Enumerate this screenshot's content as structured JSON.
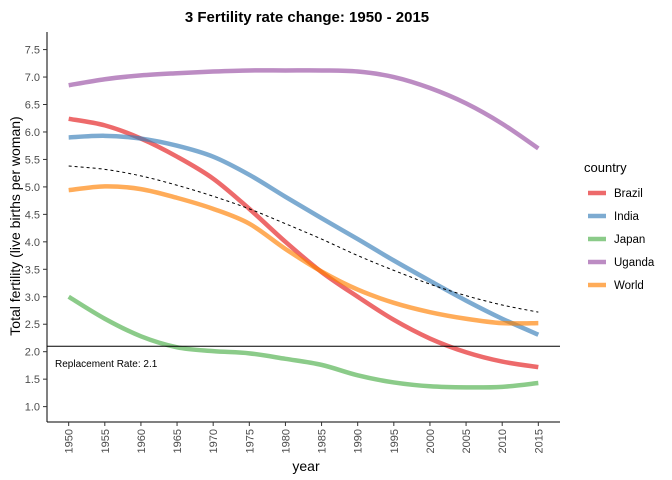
{
  "chart_data": {
    "type": "line",
    "title": "3 Fertility rate change: 1950 - 2015",
    "xlabel": "year",
    "ylabel": "Total fertility (live births per woman)",
    "xlim": [
      1947,
      2018
    ],
    "ylim": [
      0.72,
      7.82
    ],
    "x_ticks": [
      1950,
      1955,
      1960,
      1965,
      1970,
      1975,
      1980,
      1985,
      1990,
      1995,
      2000,
      2005,
      2010,
      2015
    ],
    "y_ticks": [
      1.0,
      1.5,
      2.0,
      2.5,
      3.0,
      3.5,
      4.0,
      4.5,
      5.0,
      5.5,
      6.0,
      6.5,
      7.0,
      7.5
    ],
    "y_tick_labels": [
      "1.0",
      "1.5",
      "2.0",
      "2.5",
      "3.0",
      "3.5",
      "4.0",
      "4.5",
      "5.0",
      "5.5",
      "6.0",
      "6.5",
      "7.0",
      "7.5"
    ],
    "x": [
      1950,
      1955,
      1960,
      1965,
      1970,
      1975,
      1980,
      1985,
      1990,
      1995,
      2000,
      2005,
      2010,
      2015
    ],
    "legend_title": "country",
    "legend_position": "right",
    "grid": false,
    "series": [
      {
        "name": "Brazil",
        "color": "#E41A1C",
        "values": [
          6.24,
          6.12,
          5.88,
          5.55,
          5.15,
          4.6,
          4.0,
          3.45,
          3.0,
          2.58,
          2.24,
          1.99,
          1.82,
          1.72
        ]
      },
      {
        "name": "India",
        "color": "#377EB8",
        "values": [
          5.9,
          5.93,
          5.88,
          5.75,
          5.55,
          5.22,
          4.82,
          4.43,
          4.05,
          3.66,
          3.29,
          2.93,
          2.6,
          2.31
        ]
      },
      {
        "name": "Japan",
        "color": "#4DAF4A",
        "values": [
          3.0,
          2.6,
          2.28,
          2.08,
          2.01,
          1.97,
          1.87,
          1.76,
          1.57,
          1.44,
          1.37,
          1.35,
          1.36,
          1.43
        ]
      },
      {
        "name": "Uganda",
        "color": "#984EA3",
        "values": [
          6.85,
          6.96,
          7.03,
          7.07,
          7.1,
          7.12,
          7.12,
          7.12,
          7.1,
          7.0,
          6.8,
          6.52,
          6.15,
          5.7
        ]
      },
      {
        "name": "World",
        "color": "#FF7F00",
        "values": [
          4.94,
          5.01,
          4.96,
          4.8,
          4.6,
          4.33,
          3.87,
          3.46,
          3.13,
          2.89,
          2.72,
          2.6,
          2.52,
          2.52
        ]
      }
    ],
    "trend_line": {
      "style": "dashed",
      "color": "#000000",
      "values": [
        5.38,
        5.32,
        5.2,
        5.03,
        4.83,
        4.6,
        4.33,
        4.05,
        3.75,
        3.48,
        3.23,
        3.02,
        2.85,
        2.72
      ]
    },
    "reference_line": {
      "y": 2.1,
      "label": "Replacement Rate: 2.1",
      "color": "#000000"
    }
  }
}
